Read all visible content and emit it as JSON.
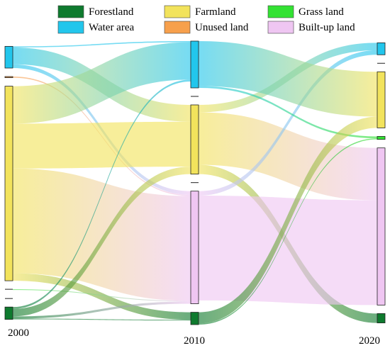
{
  "chart_data": {
    "type": "sankey",
    "title": "",
    "stages": [
      "2000",
      "2010",
      "2020"
    ],
    "categories": [
      {
        "key": "forest",
        "name": "Forestland",
        "color": "#0e7a2e"
      },
      {
        "key": "farm",
        "name": "Farmland",
        "color": "#f2e35c"
      },
      {
        "key": "grass",
        "name": "Grass land",
        "color": "#33e233"
      },
      {
        "key": "water",
        "name": "Water area",
        "color": "#22c6ec"
      },
      {
        "key": "unused",
        "name": "Unused land",
        "color": "#f7a04c"
      },
      {
        "key": "builtup",
        "name": "Built-up land",
        "color": "#efc6f2"
      }
    ],
    "legend_placement": "top",
    "stage_order": [
      "water",
      "unused",
      "farm",
      "grass",
      "builtup",
      "forest"
    ],
    "flows": [
      {
        "stage": 0,
        "from": "water",
        "to": "farm",
        "value": 4.5
      },
      {
        "stage": 0,
        "from": "water",
        "to": "builtup",
        "value": 1.0
      },
      {
        "stage": 0,
        "from": "water",
        "to": "water",
        "value": 0.3
      },
      {
        "stage": 0,
        "from": "unused",
        "to": "builtup",
        "value": 0.3
      },
      {
        "stage": 0,
        "from": "farm",
        "to": "farm",
        "value": 12.0
      },
      {
        "stage": 0,
        "from": "farm",
        "to": "builtup",
        "value": 28.0
      },
      {
        "stage": 0,
        "from": "farm",
        "to": "water",
        "value": 10.0
      },
      {
        "stage": 0,
        "from": "farm",
        "to": "forest",
        "value": 2.0
      },
      {
        "stage": 0,
        "from": "grass",
        "to": "builtup",
        "value": 0.2
      },
      {
        "stage": 0,
        "from": "forest",
        "to": "farm",
        "value": 2.0
      },
      {
        "stage": 0,
        "from": "forest",
        "to": "builtup",
        "value": 0.6
      },
      {
        "stage": 0,
        "from": "forest",
        "to": "water",
        "value": 0.5
      },
      {
        "stage": 0,
        "from": "forest",
        "to": "forest",
        "value": 0.2
      },
      {
        "stage": 1,
        "from": "farm",
        "to": "builtup",
        "value": 14.0
      },
      {
        "stage": 1,
        "from": "farm",
        "to": "water",
        "value": 2.0
      },
      {
        "stage": 1,
        "from": "farm",
        "to": "forest",
        "value": 2.5
      },
      {
        "stage": 1,
        "from": "builtup",
        "to": "builtup",
        "value": 28.0
      },
      {
        "stage": 1,
        "from": "builtup",
        "to": "water",
        "value": 1.2
      },
      {
        "stage": 1,
        "from": "water",
        "to": "farm",
        "value": 12.0
      },
      {
        "stage": 1,
        "from": "water",
        "to": "grass",
        "value": 0.5
      },
      {
        "stage": 1,
        "from": "forest",
        "to": "farm",
        "value": 3.0
      },
      {
        "stage": 1,
        "from": "forest",
        "to": "grass",
        "value": 0.3
      }
    ]
  }
}
